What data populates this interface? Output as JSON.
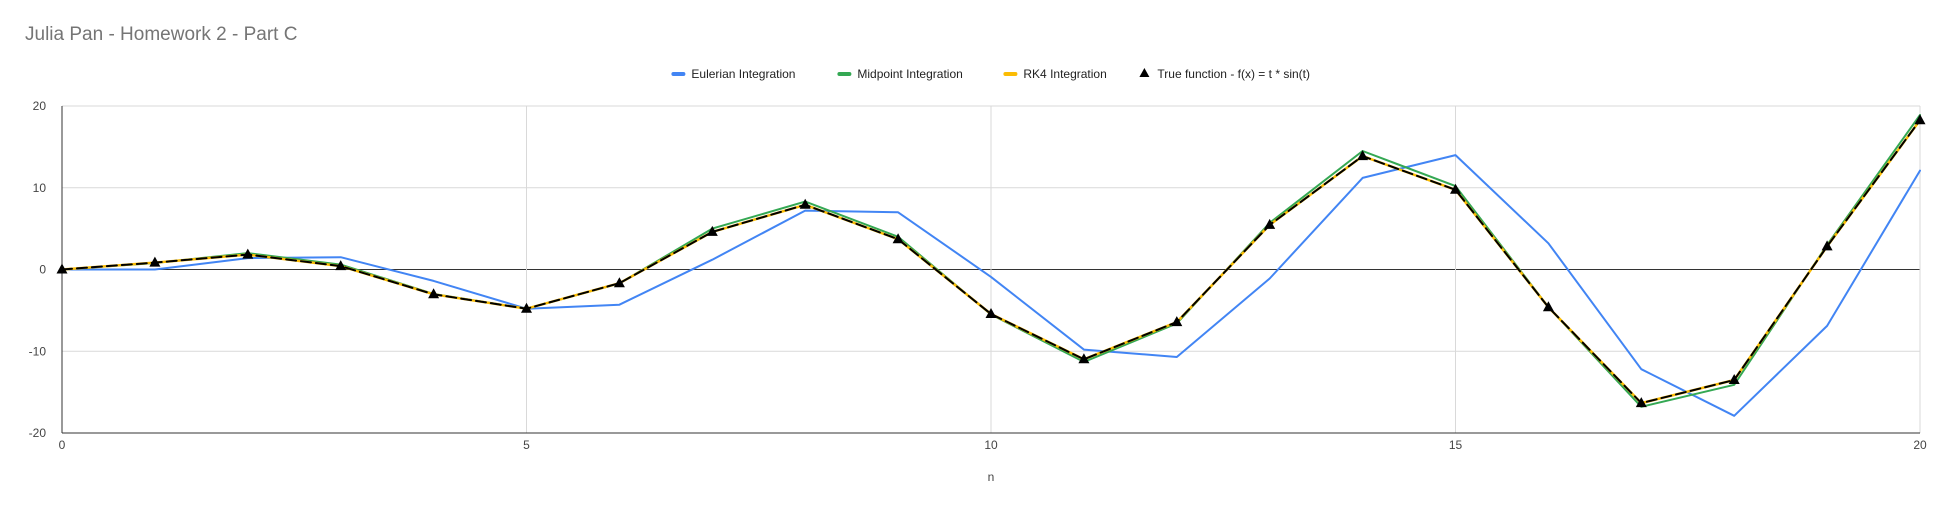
{
  "chart_data": {
    "type": "line",
    "title": "Julia Pan - Homework 2 - Part C",
    "xlabel": "n",
    "ylabel": "",
    "xlim": [
      0,
      20
    ],
    "ylim": [
      -20,
      20
    ],
    "x_ticks": [
      0,
      5,
      10,
      15,
      20
    ],
    "y_ticks": [
      20,
      10,
      0,
      -10,
      -20
    ],
    "grid": true,
    "legend_position": "top-center",
    "x": [
      0,
      1,
      2,
      3,
      4,
      5,
      6,
      7,
      8,
      9,
      10,
      11,
      12,
      13,
      14,
      15,
      16,
      17,
      18,
      19,
      20
    ],
    "series": [
      {
        "name": "Eulerian Integration",
        "color": "#4285f4",
        "marker": "none",
        "values": [
          0,
          0,
          1.4,
          1.5,
          -1.4,
          -4.8,
          -4.3,
          1.2,
          7.2,
          7.0,
          -0.9,
          -9.8,
          -10.7,
          -1.1,
          11.2,
          14.0,
          3.2,
          -12.2,
          -17.9,
          -6.9,
          12.1
        ]
      },
      {
        "name": "Midpoint Integration",
        "color": "#34a853",
        "marker": "none",
        "values": [
          0,
          0.8,
          2.0,
          0.6,
          -3.0,
          -4.8,
          -1.7,
          5.0,
          8.3,
          4.0,
          -5.5,
          -11.3,
          -6.6,
          5.7,
          14.5,
          10.2,
          -4.6,
          -16.8,
          -14.1,
          3.0,
          18.9
        ]
      },
      {
        "name": "RK4 Integration",
        "color": "#fbbc04",
        "marker": "none",
        "values": [
          0,
          0.84,
          1.82,
          0.42,
          -3.03,
          -4.79,
          -1.68,
          4.6,
          7.91,
          3.71,
          -5.44,
          -10.99,
          -6.44,
          5.46,
          13.87,
          9.75,
          -4.61,
          -16.34,
          -13.52,
          2.83,
          18.26
        ]
      },
      {
        "name": "True function - f(x) = t * sin(t)",
        "color": "#000000",
        "marker": "triangle",
        "values": [
          0,
          0.84,
          1.82,
          0.42,
          -3.03,
          -4.79,
          -1.68,
          4.6,
          7.91,
          3.71,
          -5.44,
          -10.99,
          -6.44,
          5.46,
          13.87,
          9.75,
          -4.61,
          -16.34,
          -13.52,
          2.83,
          18.26
        ]
      }
    ]
  }
}
